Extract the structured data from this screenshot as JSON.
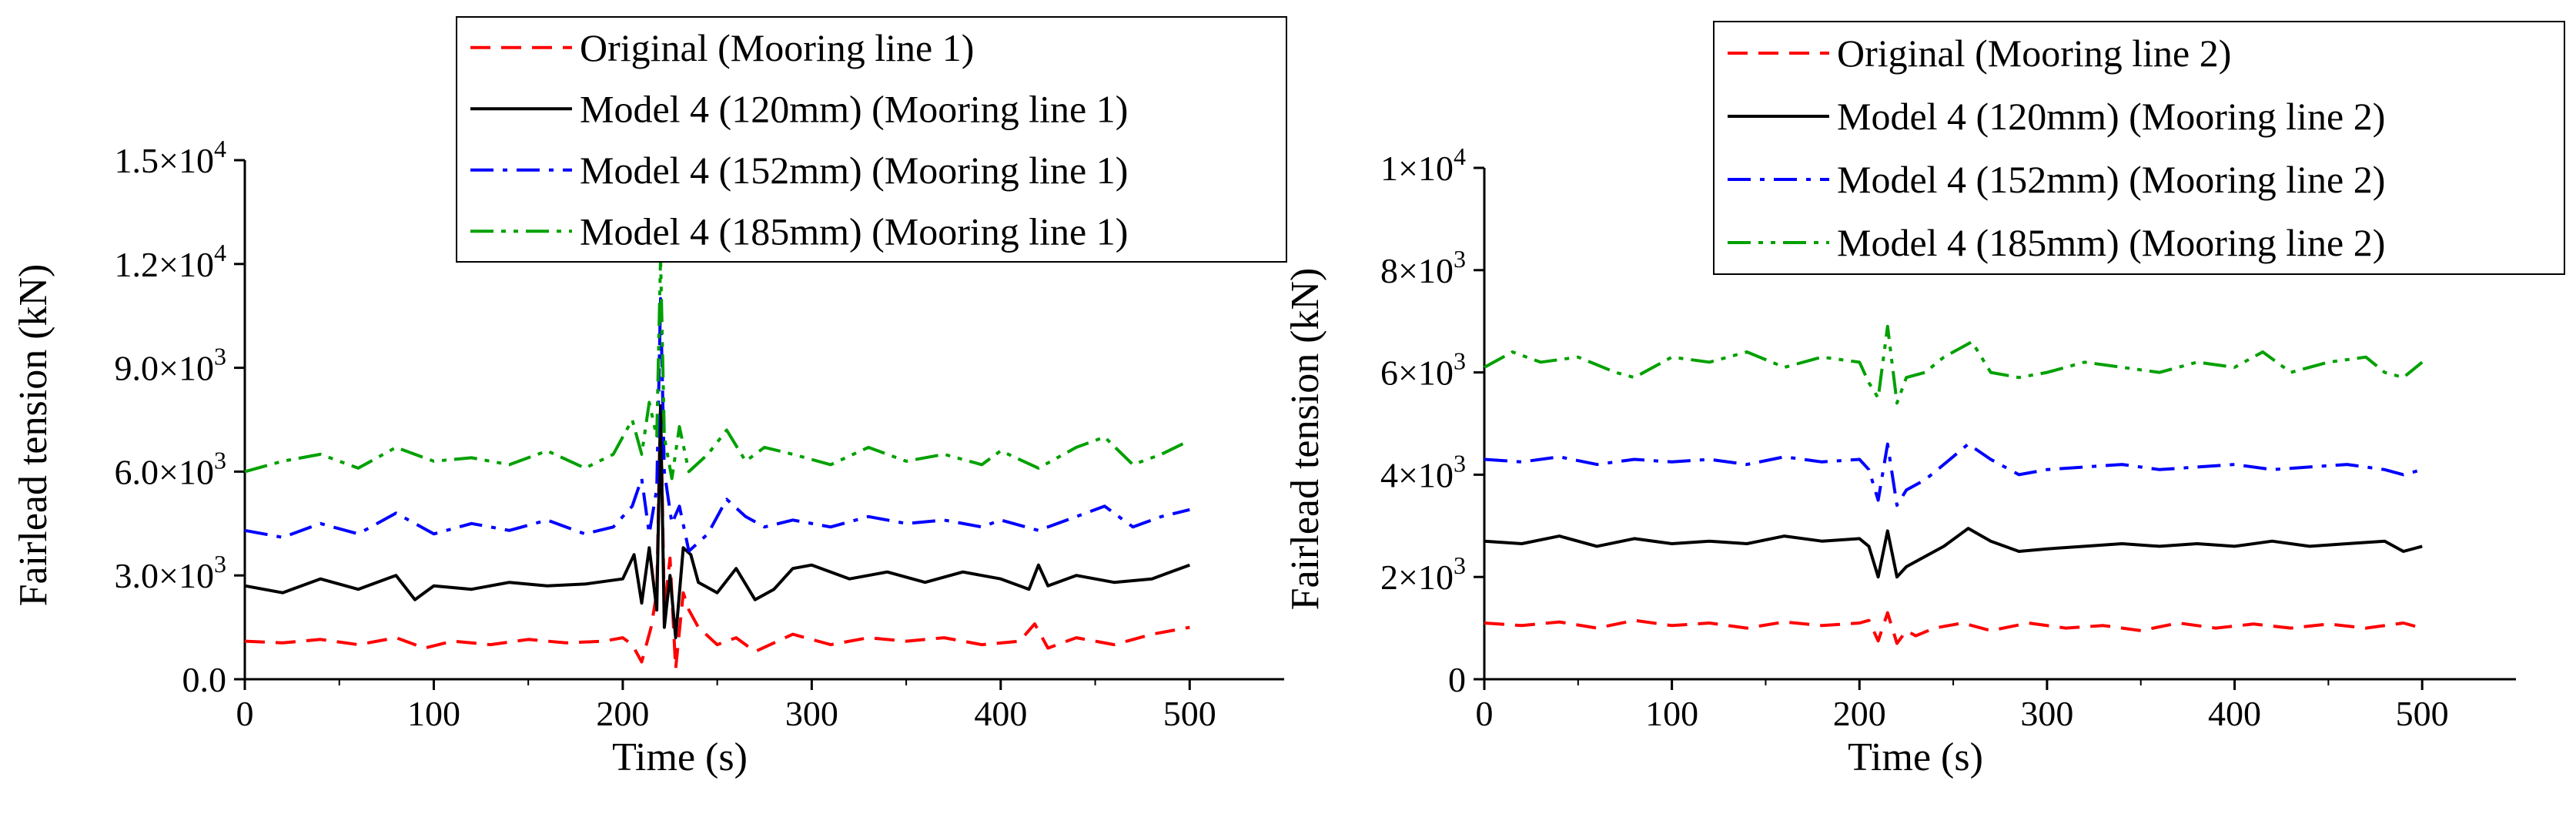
{
  "chart_data": [
    {
      "type": "line",
      "panel": "left",
      "xlabel": "Time (s)",
      "ylabel": "Fairlead tension (kN)",
      "xlim": [
        0,
        550
      ],
      "ylim": [
        0,
        15000
      ],
      "xticks": [
        0,
        100,
        200,
        300,
        400,
        500
      ],
      "x_tick_labels": [
        "0",
        "100",
        "200",
        "300",
        "400",
        "500"
      ],
      "yticks": [
        0,
        3000,
        6000,
        9000,
        12000,
        15000
      ],
      "y_tick_labels": [
        {
          "base": "0.0",
          "exp": ""
        },
        {
          "base": "3.0×10",
          "exp": "3"
        },
        {
          "base": "6.0×10",
          "exp": "3"
        },
        {
          "base": "9.0×10",
          "exp": "3"
        },
        {
          "base": "1.2×10",
          "exp": "4"
        },
        {
          "base": "1.5×10",
          "exp": "4"
        }
      ],
      "legend_position": "top-right",
      "series": [
        {
          "name": "Original (Mooring line 1)",
          "color": "#ff0000",
          "dash": "dash",
          "x": [
            0,
            20,
            40,
            60,
            80,
            95,
            110,
            130,
            150,
            170,
            190,
            200,
            205,
            210,
            215,
            218,
            220,
            222,
            225,
            228,
            232,
            235,
            240,
            250,
            260,
            270,
            290,
            310,
            330,
            350,
            370,
            390,
            410,
            418,
            425,
            440,
            460,
            480,
            500
          ],
          "values": [
            1100,
            1050,
            1150,
            1000,
            1200,
            900,
            1100,
            1000,
            1150,
            1050,
            1100,
            1200,
            1000,
            500,
            1500,
            2500,
            8000,
            2000,
            3500,
            300,
            2500,
            2000,
            1500,
            1000,
            1200,
            800,
            1300,
            1000,
            1200,
            1100,
            1200,
            1000,
            1100,
            1600,
            900,
            1200,
            1000,
            1300,
            1500
          ]
        },
        {
          "name": "Model 4 (120mm) (Mooring line 1)",
          "color": "#000000",
          "dash": "solid",
          "x": [
            0,
            20,
            40,
            60,
            80,
            90,
            100,
            120,
            140,
            160,
            180,
            200,
            206,
            210,
            214,
            218,
            220,
            222,
            225,
            228,
            232,
            236,
            240,
            250,
            260,
            270,
            280,
            290,
            300,
            320,
            340,
            360,
            380,
            400,
            415,
            420,
            425,
            440,
            460,
            480,
            500
          ],
          "values": [
            2700,
            2500,
            2900,
            2600,
            3000,
            2300,
            2700,
            2600,
            2800,
            2700,
            2750,
            2900,
            3600,
            2200,
            3800,
            2000,
            7900,
            1500,
            3000,
            1200,
            3800,
            3600,
            2800,
            2500,
            3200,
            2300,
            2600,
            3200,
            3300,
            2900,
            3100,
            2800,
            3100,
            2900,
            2600,
            3300,
            2700,
            3000,
            2800,
            2900,
            3300
          ]
        },
        {
          "name": "Model 4 (152mm) (Mooring line 1)",
          "color": "#0000ff",
          "dash": "dashdot",
          "x": [
            0,
            20,
            40,
            60,
            80,
            100,
            120,
            140,
            160,
            180,
            195,
            205,
            210,
            214,
            218,
            220,
            222,
            226,
            230,
            235,
            245,
            255,
            265,
            275,
            290,
            310,
            330,
            350,
            370,
            390,
            400,
            420,
            440,
            455,
            470,
            485,
            500
          ],
          "values": [
            4300,
            4100,
            4500,
            4200,
            4800,
            4200,
            4500,
            4300,
            4600,
            4200,
            4400,
            5000,
            5800,
            4200,
            5500,
            11000,
            6000,
            4500,
            5000,
            3700,
            4200,
            5200,
            4700,
            4400,
            4600,
            4400,
            4700,
            4500,
            4600,
            4400,
            4600,
            4300,
            4700,
            5000,
            4400,
            4700,
            4900
          ]
        },
        {
          "name": "Model 4 (185mm) (Mooring line 1)",
          "color": "#00a000",
          "dash": "dashdotdot",
          "x": [
            0,
            20,
            40,
            60,
            80,
            100,
            120,
            140,
            160,
            180,
            195,
            205,
            210,
            214,
            218,
            220,
            222,
            226,
            230,
            235,
            245,
            255,
            265,
            275,
            290,
            310,
            330,
            350,
            370,
            390,
            400,
            420,
            440,
            455,
            470,
            485,
            500
          ],
          "values": [
            6000,
            6300,
            6500,
            6100,
            6700,
            6300,
            6400,
            6200,
            6600,
            6100,
            6500,
            7500,
            6500,
            8000,
            7000,
            12200,
            7000,
            5800,
            7300,
            6000,
            6500,
            7200,
            6300,
            6700,
            6500,
            6200,
            6700,
            6300,
            6500,
            6200,
            6600,
            6100,
            6700,
            7000,
            6200,
            6500,
            6900
          ]
        }
      ]
    },
    {
      "type": "line",
      "panel": "right",
      "xlabel": "Time (s)",
      "ylabel": "Fairlead tension (kN)",
      "xlim": [
        0,
        550
      ],
      "ylim": [
        0,
        10000
      ],
      "xticks": [
        0,
        100,
        200,
        300,
        400,
        500
      ],
      "x_tick_labels": [
        "0",
        "100",
        "200",
        "300",
        "400",
        "500"
      ],
      "yticks": [
        0,
        2000,
        4000,
        6000,
        8000,
        10000
      ],
      "y_tick_labels": [
        {
          "base": "0",
          "exp": ""
        },
        {
          "base": "2×10",
          "exp": "3"
        },
        {
          "base": "4×10",
          "exp": "3"
        },
        {
          "base": "6×10",
          "exp": "3"
        },
        {
          "base": "8×10",
          "exp": "3"
        },
        {
          "base": "1×10",
          "exp": "4"
        }
      ],
      "legend_position": "top-right",
      "series": [
        {
          "name": "Original (Mooring line 2)",
          "color": "#ff0000",
          "dash": "dash",
          "x": [
            0,
            20,
            40,
            60,
            80,
            100,
            120,
            140,
            160,
            180,
            200,
            205,
            210,
            215,
            220,
            225,
            230,
            240,
            255,
            270,
            290,
            310,
            330,
            350,
            370,
            390,
            410,
            430,
            450,
            470,
            490,
            500
          ],
          "values": [
            1100,
            1050,
            1120,
            1000,
            1150,
            1050,
            1100,
            1000,
            1120,
            1050,
            1100,
            1150,
            750,
            1300,
            700,
            950,
            850,
            1000,
            1100,
            950,
            1100,
            1000,
            1050,
            950,
            1100,
            1000,
            1080,
            1000,
            1080,
            1000,
            1100,
            1000
          ]
        },
        {
          "name": "Model 4 (120mm) (Mooring line 2)",
          "color": "#000000",
          "dash": "solid",
          "x": [
            0,
            20,
            40,
            60,
            80,
            100,
            120,
            140,
            160,
            180,
            200,
            205,
            210,
            215,
            220,
            225,
            235,
            245,
            258,
            270,
            285,
            300,
            320,
            340,
            360,
            380,
            400,
            420,
            440,
            460,
            480,
            490,
            500
          ],
          "values": [
            2700,
            2650,
            2800,
            2600,
            2750,
            2650,
            2700,
            2650,
            2800,
            2700,
            2750,
            2600,
            2000,
            2900,
            2000,
            2200,
            2400,
            2600,
            2950,
            2700,
            2500,
            2550,
            2600,
            2650,
            2600,
            2650,
            2600,
            2700,
            2600,
            2650,
            2700,
            2500,
            2600
          ]
        },
        {
          "name": "Model 4 (152mm) (Mooring line 2)",
          "color": "#0000ff",
          "dash": "dashdot",
          "x": [
            0,
            20,
            40,
            60,
            80,
            100,
            120,
            140,
            160,
            180,
            200,
            205,
            210,
            215,
            220,
            225,
            235,
            245,
            258,
            270,
            285,
            300,
            320,
            340,
            360,
            380,
            400,
            420,
            440,
            460,
            480,
            490,
            500
          ],
          "values": [
            4300,
            4250,
            4350,
            4200,
            4300,
            4250,
            4300,
            4200,
            4350,
            4250,
            4300,
            4100,
            3500,
            4600,
            3400,
            3700,
            3900,
            4200,
            4600,
            4300,
            4000,
            4100,
            4150,
            4200,
            4100,
            4150,
            4200,
            4100,
            4150,
            4200,
            4100,
            4000,
            4100
          ]
        },
        {
          "name": "Model 4 (185mm) (Mooring line 2)",
          "color": "#00a000",
          "dash": "dashdotdot",
          "x": [
            0,
            15,
            30,
            50,
            70,
            80,
            100,
            120,
            140,
            160,
            180,
            200,
            205,
            210,
            215,
            220,
            225,
            235,
            245,
            260,
            270,
            285,
            300,
            320,
            340,
            360,
            380,
            400,
            415,
            430,
            450,
            470,
            480,
            490,
            500
          ],
          "values": [
            6100,
            6400,
            6200,
            6300,
            6000,
            5900,
            6300,
            6200,
            6400,
            6100,
            6300,
            6200,
            5800,
            5500,
            6900,
            5400,
            5900,
            6000,
            6300,
            6600,
            6000,
            5900,
            6000,
            6200,
            6100,
            6000,
            6200,
            6100,
            6400,
            6000,
            6200,
            6300,
            6000,
            5900,
            6200
          ]
        }
      ]
    }
  ]
}
